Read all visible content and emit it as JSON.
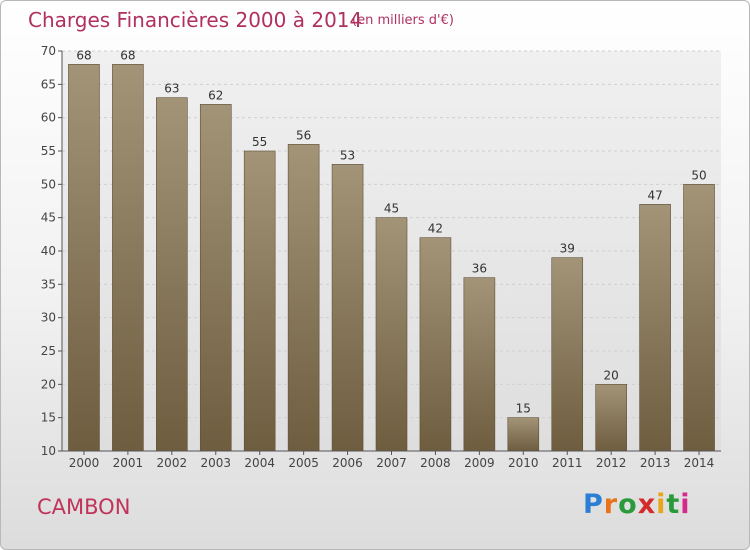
{
  "header": {
    "title": "Charges Financières 2000 à 2014",
    "subtitle": "(en milliers d'€)"
  },
  "footer": {
    "commune": "CAMBON",
    "logo_text": "Proxiti",
    "logo_colors": [
      "#2a7fd4",
      "#e8731a",
      "#2a9a3a",
      "#d42a2a",
      "#e8a61a",
      "#2a9a3a",
      "#d42a8a"
    ]
  },
  "chart_data": {
    "type": "bar",
    "categories": [
      "2000",
      "2001",
      "2002",
      "2003",
      "2004",
      "2005",
      "2006",
      "2007",
      "2008",
      "2009",
      "2010",
      "2011",
      "2012",
      "2013",
      "2014"
    ],
    "values": [
      68,
      68,
      63,
      62,
      55,
      56,
      53,
      45,
      42,
      36,
      15,
      39,
      20,
      47,
      50
    ],
    "title": "Charges Financières 2000 à 2014",
    "subtitle": "(en milliers d'€)",
    "ylim": [
      10,
      70
    ],
    "yticks": [
      10,
      15,
      20,
      25,
      30,
      35,
      40,
      45,
      50,
      55,
      60,
      65,
      70
    ],
    "grid": true,
    "bar_color": "#8f7f60",
    "colors": {
      "bar_top": "#a39478",
      "bar_bottom": "#6e5d3f",
      "grid": "#cfcfcf",
      "plot_bg": "#e6e6e6"
    }
  }
}
